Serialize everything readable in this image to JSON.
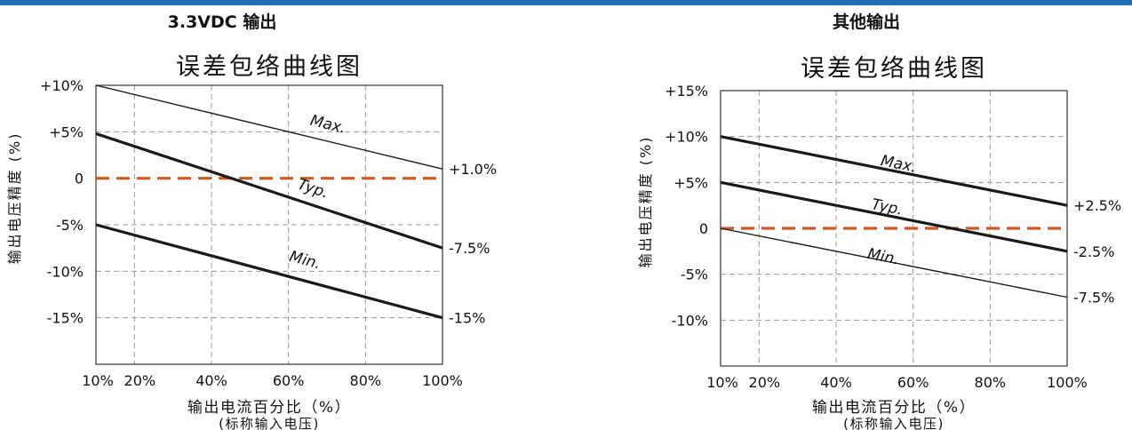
{
  "header": {
    "bar_color": "#1f6fb5"
  },
  "chart_data": [
    {
      "type": "line",
      "heading": "3.3VDC 输出",
      "title": "误差包络曲线图",
      "xlabel": "输出电流百分比（%）",
      "xlabel2": "(标称输入电压)",
      "ylabel": "输出电压精度 (%)",
      "xlim": [
        10,
        100
      ],
      "ylim": [
        -20,
        10
      ],
      "x_ticks": [
        10,
        20,
        40,
        60,
        80,
        100
      ],
      "x_tick_labels": [
        "10%",
        "20%",
        "40%",
        "60%",
        "80%",
        "100%"
      ],
      "y_ticks": [
        10,
        5,
        0,
        -5,
        -10,
        -15
      ],
      "y_tick_labels": [
        "+10%",
        "+5%",
        "0",
        "-5%",
        "-10%",
        "-15%"
      ],
      "reference_line": {
        "y": 0,
        "color": "#d4571e"
      },
      "series": [
        {
          "name": "Max.",
          "x": [
            10,
            100
          ],
          "y": [
            10,
            1
          ],
          "end_label": "+1.0%",
          "weight": "thin",
          "label_at": [
            70,
            5.3
          ]
        },
        {
          "name": "Typ.",
          "x": [
            10,
            100
          ],
          "y": [
            4.8,
            -7.5
          ],
          "end_label": "-7.5%",
          "weight": "bold",
          "label_at": [
            66,
            -1.6
          ]
        },
        {
          "name": "Min.",
          "x": [
            10,
            100
          ],
          "y": [
            -5,
            -15
          ],
          "end_label": "-15%",
          "weight": "bold",
          "label_at": [
            64,
            -9.3
          ]
        }
      ]
    },
    {
      "type": "line",
      "heading": "其他输出",
      "title": "误差包络曲线图",
      "xlabel": "输出电流百分比（%）",
      "xlabel2": "(标称输入电压)",
      "ylabel": "输出电压精度 (%)",
      "xlim": [
        10,
        100
      ],
      "ylim": [
        -15,
        15
      ],
      "x_ticks": [
        10,
        20,
        40,
        60,
        80,
        100
      ],
      "x_tick_labels": [
        "10%",
        "20%",
        "40%",
        "60%",
        "80%",
        "100%"
      ],
      "y_ticks": [
        15,
        10,
        5,
        0,
        -5,
        -10
      ],
      "y_tick_labels": [
        "+15%",
        "+10%",
        "+5%",
        "0",
        "-5%",
        "-10%"
      ],
      "reference_line": {
        "y": 0,
        "color": "#d4571e"
      },
      "series": [
        {
          "name": "Max.",
          "x": [
            10,
            100
          ],
          "y": [
            10,
            2.5
          ],
          "end_label": "+2.5%",
          "weight": "bold",
          "label_at": [
            56,
            6.5
          ]
        },
        {
          "name": "Typ.",
          "x": [
            10,
            100
          ],
          "y": [
            5,
            -2.5
          ],
          "end_label": "-2.5%",
          "weight": "bold",
          "label_at": [
            53,
            1.8
          ]
        },
        {
          "name": "Min.",
          "x": [
            10,
            100
          ],
          "y": [
            0,
            -7.5
          ],
          "end_label": "-7.5%",
          "weight": "thin",
          "label_at": [
            52,
            -3.6
          ]
        }
      ]
    }
  ]
}
